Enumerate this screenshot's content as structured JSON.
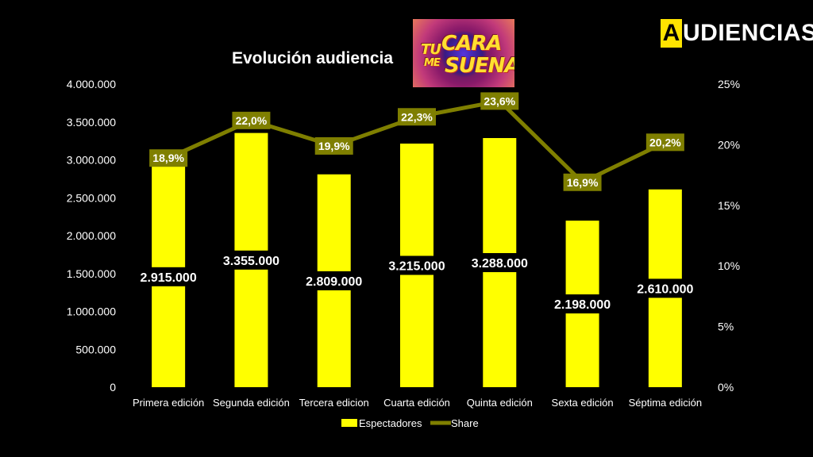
{
  "brand": {
    "first_letter": "A",
    "rest": "UDIENCIAS"
  },
  "show_logo": {
    "line1": "TU",
    "line2": "CARA",
    "line3": "ME",
    "line4": "SUENA"
  },
  "chart_data": {
    "type": "bar",
    "title": "Evolución audiencia",
    "categories": [
      "Primera edición",
      "Segunda edición",
      "Tercera edicion",
      "Cuarta edición",
      "Quinta edición",
      "Sexta edición",
      "Séptima edición"
    ],
    "series": [
      {
        "name": "Espectadores",
        "type": "bar",
        "axis": "left",
        "color": "#ffff00",
        "values": [
          2915000,
          3355000,
          2809000,
          3215000,
          3288000,
          2198000,
          2610000
        ],
        "labels": [
          "2.915.000",
          "3.355.000",
          "2.809.000",
          "3.215.000",
          "3.288.000",
          "2.198.000",
          "2.610.000"
        ]
      },
      {
        "name": "Share",
        "type": "line",
        "axis": "right",
        "color": "#7f7f00",
        "values": [
          18.9,
          22.0,
          19.9,
          22.3,
          23.6,
          16.9,
          20.2
        ],
        "labels": [
          "18,9%",
          "22,0%",
          "19,9%",
          "22,3%",
          "23,6%",
          "16,9%",
          "20,2%"
        ]
      }
    ],
    "y_left": {
      "ylim": [
        0,
        4000000
      ],
      "ticks": [
        "0",
        "500.000",
        "1.000.000",
        "1.500.000",
        "2.000.000",
        "2.500.000",
        "3.000.000",
        "3.500.000",
        "4.000.000"
      ]
    },
    "y_right": {
      "ylim": [
        0,
        25
      ],
      "ticks": [
        "0%",
        "5%",
        "10%",
        "15%",
        "20%",
        "25%"
      ]
    },
    "grid": false,
    "legend": "bottom"
  }
}
